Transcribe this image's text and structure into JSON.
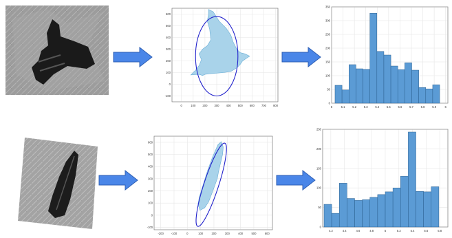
{
  "colors": {
    "arrow": "#4a86e8",
    "arrow_edge": "#2f5fb3",
    "shape_fill": "#a9d3ea",
    "shape_edge": "#6aaed6",
    "ellipse": "#2222cc",
    "bar_fill": "#5b9bd5",
    "bar_edge": "#2b5f8e"
  },
  "icons": [
    "arrow-right-icon"
  ],
  "chart_data": [
    {
      "type": "scatter",
      "description_row": "top",
      "x_ticks": [
        "0",
        "100",
        "200",
        "300",
        "400",
        "500",
        "600",
        "700",
        "800"
      ],
      "y_ticks": [
        "-100",
        "0",
        "100",
        "200",
        "300",
        "400",
        "500",
        "600"
      ],
      "xlim": [
        -80,
        820
      ],
      "ylim": [
        -150,
        650
      ],
      "grid": true,
      "ellipse": {
        "cx": 300,
        "cy": 240,
        "rx": 180,
        "ry": 340
      },
      "polygon": [
        [
          230,
          640
        ],
        [
          270,
          620
        ],
        [
          320,
          540
        ],
        [
          380,
          480
        ],
        [
          420,
          420
        ],
        [
          440,
          360
        ],
        [
          470,
          300
        ],
        [
          500,
          270
        ],
        [
          540,
          260
        ],
        [
          580,
          240
        ],
        [
          520,
          200
        ],
        [
          500,
          170
        ],
        [
          470,
          140
        ],
        [
          420,
          110
        ],
        [
          360,
          100
        ],
        [
          300,
          95
        ],
        [
          240,
          90
        ],
        [
          200,
          85
        ],
        [
          180,
          75
        ],
        [
          150,
          85
        ],
        [
          80,
          80
        ],
        [
          120,
          120
        ],
        [
          150,
          160
        ],
        [
          170,
          210
        ],
        [
          150,
          260
        ],
        [
          180,
          300
        ],
        [
          220,
          330
        ],
        [
          250,
          380
        ],
        [
          240,
          470
        ],
        [
          220,
          540
        ],
        [
          230,
          600
        ]
      ]
    },
    {
      "type": "bar",
      "x_ticks": [
        "5",
        "5.1",
        "5.2",
        "5.3",
        "5.4",
        "5.5",
        "5.6",
        "5.7",
        "5.8",
        "5.9",
        "6"
      ],
      "y_ticks": [
        "0",
        "50",
        "100",
        "150",
        "200",
        "250",
        "300",
        "350"
      ],
      "xlim": [
        5.0,
        6.02
      ],
      "ylim": [
        0,
        350
      ],
      "grid": true,
      "bin_start": 5.03,
      "bin_width": 0.0612,
      "values": [
        65,
        48,
        140,
        125,
        123,
        327,
        188,
        175,
        135,
        122,
        147,
        120,
        57,
        52,
        67
      ]
    },
    {
      "type": "scatter",
      "description_row": "bottom",
      "x_ticks": [
        "-200",
        "-100",
        "0",
        "100",
        "200",
        "300",
        "400",
        "500",
        "600"
      ],
      "y_ticks": [
        "-100",
        "0",
        "100",
        "200",
        "300",
        "400",
        "500",
        "600"
      ],
      "xlim": [
        -250,
        640
      ],
      "ylim": [
        -120,
        650
      ],
      "grid": true,
      "ellipse": {
        "cx": 180,
        "cy": 250,
        "rx": 55,
        "ry": 360,
        "rotate_deg": 18
      },
      "polygon": [
        [
          255,
          605
        ],
        [
          270,
          560
        ],
        [
          265,
          500
        ],
        [
          250,
          430
        ],
        [
          235,
          360
        ],
        [
          225,
          300
        ],
        [
          205,
          240
        ],
        [
          185,
          180
        ],
        [
          160,
          110
        ],
        [
          130,
          60
        ],
        [
          95,
          40
        ],
        [
          80,
          90
        ],
        [
          90,
          150
        ],
        [
          110,
          220
        ],
        [
          130,
          290
        ],
        [
          150,
          360
        ],
        [
          170,
          420
        ],
        [
          190,
          480
        ],
        [
          210,
          530
        ],
        [
          230,
          580
        ]
      ]
    },
    {
      "type": "bar",
      "x_ticks": [
        "4.2",
        "4.4",
        "4.6",
        "4.8",
        "5",
        "5.2",
        "5.4",
        "5.6",
        "5.8"
      ],
      "y_ticks": [
        "0",
        "50",
        "100",
        "150",
        "200",
        "250"
      ],
      "xlim": [
        4.08,
        5.92
      ],
      "ylim": [
        0,
        250
      ],
      "grid": true,
      "bin_start": 4.1,
      "bin_width": 0.1125,
      "values": [
        58,
        35,
        112,
        73,
        68,
        70,
        76,
        83,
        90,
        100,
        130,
        243,
        91,
        90,
        103
      ]
    }
  ]
}
